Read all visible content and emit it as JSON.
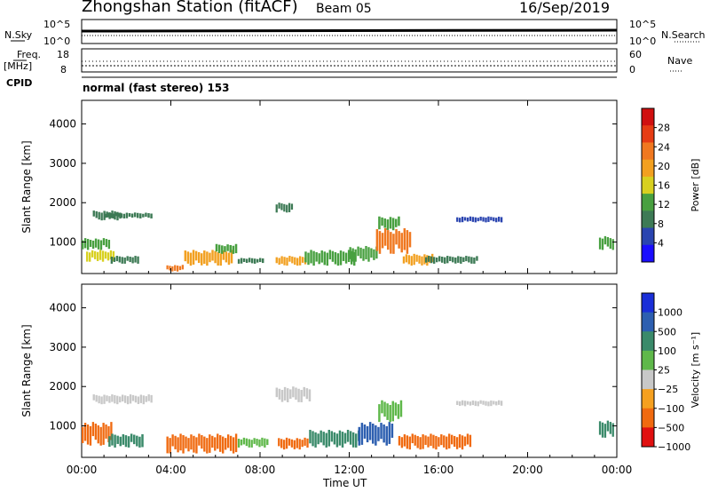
{
  "header": {
    "title": "Zhongshan Station (fitACF)",
    "beam": "Beam 05",
    "date": "16/Sep/2019",
    "mode": "normal (fast stereo) 153"
  },
  "summary_panels": {
    "nsky_label": "N.Sky",
    "nsky_ticks": [
      "10^5",
      "10^0"
    ],
    "nsearch_label": "N.Search",
    "nsearch_ticks": [
      "10^5",
      "10^0"
    ],
    "freq_label": "Freq.",
    "freq_unit": "[MHz]",
    "freq_ticks": [
      "18",
      "8"
    ],
    "cpid_label": "CPID",
    "nave_label": "Nave",
    "nave_ticks": [
      "60",
      "0"
    ]
  },
  "colors": {
    "power": [
      "#1a0dff",
      "#2a44b0",
      "#3d7a55",
      "#48a040",
      "#d8d020",
      "#f2a020",
      "#f07820",
      "#e63c14",
      "#d01010"
    ],
    "velocity": [
      "#e01010",
      "#f06a10",
      "#f5a020",
      "#c8c8c8",
      "#5fb84a",
      "#3a8a6a",
      "#2d5fb0",
      "#1a2fd8"
    ]
  },
  "chart_data": [
    {
      "type": "heatmap",
      "title": "",
      "ylabel": "Slant Range [km]",
      "xlabel": "Time UT",
      "x_ticks": [
        "00:00",
        "04:00",
        "08:00",
        "12:00",
        "16:00",
        "20:00",
        "00:00"
      ],
      "y_ticks": [
        "1000",
        "2000",
        "3000",
        "4000"
      ],
      "x_range_hours": [
        0,
        24
      ],
      "y_range_km": [
        200,
        4600
      ],
      "colorbar": {
        "label": "Power [dB]",
        "ticks": [
          "4",
          "8",
          "12",
          "16",
          "20",
          "24",
          "28"
        ],
        "range": [
          0,
          32
        ],
        "palette": "power"
      },
      "regions": [
        {
          "t0": 0.5,
          "t1": 1.8,
          "r0": 1550,
          "r1": 1800,
          "v": 9
        },
        {
          "t0": 1.0,
          "t1": 3.2,
          "r0": 1600,
          "r1": 1750,
          "v": 8
        },
        {
          "t0": 0.0,
          "t1": 1.3,
          "r0": 800,
          "r1": 1100,
          "v": 13
        },
        {
          "t0": 0.2,
          "t1": 1.5,
          "r0": 500,
          "r1": 800,
          "v": 16
        },
        {
          "t0": 1.3,
          "t1": 2.6,
          "r0": 450,
          "r1": 650,
          "v": 10
        },
        {
          "t0": 3.8,
          "t1": 4.6,
          "r0": 250,
          "r1": 420,
          "v": 23
        },
        {
          "t0": 4.6,
          "t1": 6.8,
          "r0": 400,
          "r1": 800,
          "v": 18
        },
        {
          "t0": 6.0,
          "t1": 7.0,
          "r0": 700,
          "r1": 950,
          "v": 12
        },
        {
          "t0": 7.0,
          "t1": 8.2,
          "r0": 450,
          "r1": 600,
          "v": 9
        },
        {
          "t0": 8.7,
          "t1": 9.5,
          "r0": 1750,
          "r1": 2000,
          "v": 10
        },
        {
          "t0": 8.7,
          "t1": 10.1,
          "r0": 400,
          "r1": 650,
          "v": 20
        },
        {
          "t0": 10.0,
          "t1": 12.3,
          "r0": 400,
          "r1": 800,
          "v": 12
        },
        {
          "t0": 12.0,
          "t1": 13.3,
          "r0": 500,
          "r1": 900,
          "v": 14
        },
        {
          "t0": 13.2,
          "t1": 14.8,
          "r0": 700,
          "r1": 1350,
          "v": 24
        },
        {
          "t0": 13.3,
          "t1": 14.3,
          "r0": 1300,
          "r1": 1650,
          "v": 14
        },
        {
          "t0": 14.4,
          "t1": 15.8,
          "r0": 400,
          "r1": 700,
          "v": 21
        },
        {
          "t0": 15.4,
          "t1": 17.8,
          "r0": 450,
          "r1": 650,
          "v": 9
        },
        {
          "t0": 16.8,
          "t1": 18.9,
          "r0": 1500,
          "r1": 1650,
          "v": 7
        },
        {
          "t0": 23.2,
          "t1": 23.9,
          "r0": 800,
          "r1": 1150,
          "v": 12
        }
      ]
    },
    {
      "type": "heatmap",
      "title": "",
      "ylabel": "Slant Range [km]",
      "xlabel": "Time UT",
      "x_ticks": [
        "00:00",
        "04:00",
        "08:00",
        "12:00",
        "16:00",
        "20:00",
        "00:00"
      ],
      "y_ticks": [
        "1000",
        "2000",
        "3000",
        "4000"
      ],
      "x_range_hours": [
        0,
        24
      ],
      "y_range_km": [
        200,
        4600
      ],
      "colorbar": {
        "label": "Velocity [m s⁻¹]",
        "ticks": [
          "1000",
          "500",
          "100",
          "25",
          "−25",
          "−100",
          "−500",
          "−1000"
        ],
        "palette": "velocity"
      },
      "regions": [
        {
          "t0": 0.5,
          "t1": 3.2,
          "r0": 1550,
          "r1": 1800,
          "v": 3
        },
        {
          "t0": 0.0,
          "t1": 1.4,
          "r0": 500,
          "r1": 1100,
          "v": 1
        },
        {
          "t0": 1.2,
          "t1": 2.8,
          "r0": 450,
          "r1": 800,
          "v": 5
        },
        {
          "t0": 3.8,
          "t1": 7.0,
          "r0": 300,
          "r1": 800,
          "v": 1
        },
        {
          "t0": 7.0,
          "t1": 8.4,
          "r0": 450,
          "r1": 700,
          "v": 4
        },
        {
          "t0": 8.7,
          "t1": 10.3,
          "r0": 1600,
          "r1": 2000,
          "v": 3
        },
        {
          "t0": 8.8,
          "t1": 10.2,
          "r0": 400,
          "r1": 700,
          "v": 1
        },
        {
          "t0": 10.2,
          "t1": 12.5,
          "r0": 450,
          "r1": 900,
          "v": 5
        },
        {
          "t0": 12.4,
          "t1": 14.0,
          "r0": 500,
          "r1": 1100,
          "v": 6
        },
        {
          "t0": 13.3,
          "t1": 14.4,
          "r0": 1100,
          "r1": 1650,
          "v": 4
        },
        {
          "t0": 14.2,
          "t1": 17.5,
          "r0": 400,
          "r1": 800,
          "v": 1
        },
        {
          "t0": 16.8,
          "t1": 18.9,
          "r0": 1500,
          "r1": 1650,
          "v": 3
        },
        {
          "t0": 23.2,
          "t1": 23.9,
          "r0": 700,
          "r1": 1150,
          "v": 5
        }
      ]
    }
  ]
}
